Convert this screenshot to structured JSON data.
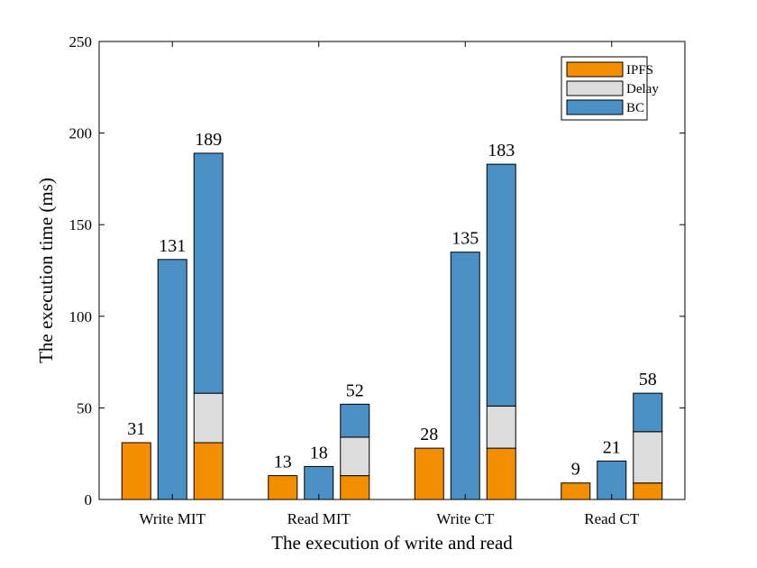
{
  "chart_data": {
    "type": "bar",
    "title": "",
    "xlabel": "The execution of write and read",
    "ylabel": "The execution time (ms)",
    "ylim": [
      0,
      250
    ],
    "yticks": [
      0,
      50,
      100,
      150,
      200,
      250
    ],
    "grid": false,
    "legend_position": "top-right",
    "categories": [
      "Write MIT",
      "Read MIT",
      "Write CT",
      "Read CT"
    ],
    "stack_components": [
      "IPFS",
      "Delay",
      "BC"
    ],
    "bars_per_category": 3,
    "bars": [
      {
        "category": "Write MIT",
        "slot": 0,
        "IPFS": 31,
        "Delay": 0,
        "BC": 0,
        "total": 31,
        "label": "31"
      },
      {
        "category": "Write MIT",
        "slot": 1,
        "IPFS": 0,
        "Delay": 0,
        "BC": 131,
        "total": 131,
        "label": "131"
      },
      {
        "category": "Write MIT",
        "slot": 2,
        "IPFS": 31,
        "Delay": 27,
        "BC": 131,
        "total": 189,
        "label": "189"
      },
      {
        "category": "Read MIT",
        "slot": 0,
        "IPFS": 13,
        "Delay": 0,
        "BC": 0,
        "total": 13,
        "label": "13"
      },
      {
        "category": "Read MIT",
        "slot": 1,
        "IPFS": 0,
        "Delay": 0,
        "BC": 18,
        "total": 18,
        "label": "18"
      },
      {
        "category": "Read MIT",
        "slot": 2,
        "IPFS": 13,
        "Delay": 21,
        "BC": 18,
        "total": 52,
        "label": "52"
      },
      {
        "category": "Write CT",
        "slot": 0,
        "IPFS": 28,
        "Delay": 0,
        "BC": 0,
        "total": 28,
        "label": "28"
      },
      {
        "category": "Write CT",
        "slot": 1,
        "IPFS": 0,
        "Delay": 0,
        "BC": 135,
        "total": 135,
        "label": "135"
      },
      {
        "category": "Write CT",
        "slot": 2,
        "IPFS": 28,
        "Delay": 23,
        "BC": 132,
        "total": 183,
        "label": "183"
      },
      {
        "category": "Read CT",
        "slot": 0,
        "IPFS": 9,
        "Delay": 0,
        "BC": 0,
        "total": 9,
        "label": "9"
      },
      {
        "category": "Read CT",
        "slot": 1,
        "IPFS": 0,
        "Delay": 0,
        "BC": 21,
        "total": 21,
        "label": "21"
      },
      {
        "category": "Read CT",
        "slot": 2,
        "IPFS": 9,
        "Delay": 28,
        "BC": 21,
        "total": 58,
        "label": "58"
      }
    ],
    "legend": [
      {
        "name": "IPFS",
        "color": "#f28e00"
      },
      {
        "name": "Delay",
        "color": "#dcdcdc"
      },
      {
        "name": "BC",
        "color": "#4a90c4"
      }
    ]
  }
}
